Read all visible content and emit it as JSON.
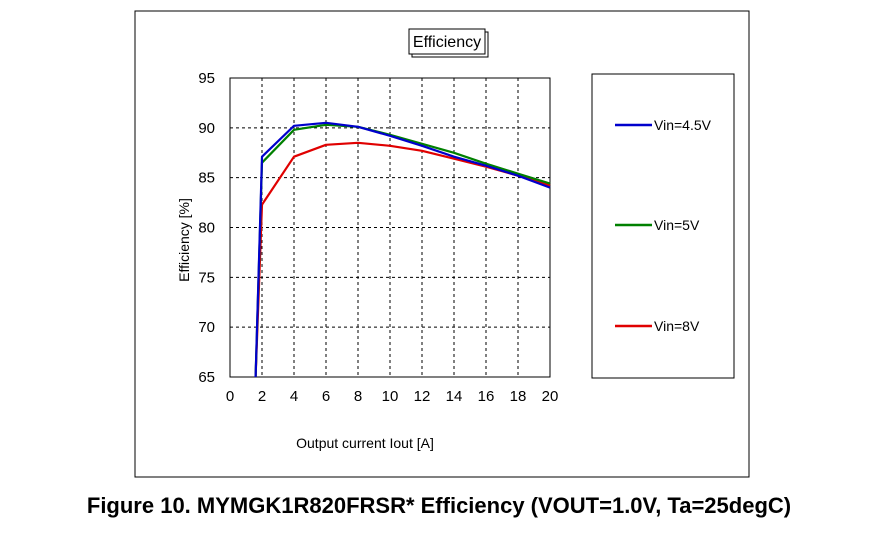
{
  "figure_caption": "Figure 10. MYMGK1R820FRSR* Efficiency (VOUT=1.0V, Ta=25degC)",
  "chart_data": {
    "type": "line",
    "title": "Efficiency",
    "xlabel": "Output current Iout [A]",
    "ylabel": "Efficiency [%]",
    "xlim": [
      0,
      20
    ],
    "ylim": [
      65,
      95
    ],
    "x_ticks": [
      0,
      2,
      4,
      6,
      8,
      10,
      12,
      14,
      16,
      18,
      20
    ],
    "y_ticks": [
      65,
      70,
      75,
      80,
      85,
      90,
      95
    ],
    "grid": true,
    "legend_position": "right",
    "series": [
      {
        "name": "Vin=4.5V",
        "color": "#0000cc",
        "x": [
          1.6,
          2,
          4,
          6,
          8,
          10,
          12,
          14,
          16,
          18,
          20
        ],
        "y": [
          65,
          87.1,
          90.2,
          90.5,
          90.1,
          89.2,
          88.2,
          87.1,
          86.2,
          85.2,
          84.0
        ]
      },
      {
        "name": "Vin=5V",
        "color": "#008000",
        "x": [
          1.6,
          2,
          4,
          6,
          8,
          10,
          12,
          14,
          16,
          18,
          20
        ],
        "y": [
          65,
          86.5,
          89.8,
          90.3,
          90.1,
          89.3,
          88.4,
          87.5,
          86.4,
          85.4,
          84.4
        ]
      },
      {
        "name": "Vin=8V",
        "color": "#e00000",
        "x": [
          1.6,
          2,
          4,
          6,
          8,
          10,
          12,
          14,
          16,
          18,
          20
        ],
        "y": [
          65,
          82.3,
          87.1,
          88.3,
          88.5,
          88.2,
          87.7,
          86.9,
          86.1,
          85.2,
          84.2
        ]
      }
    ]
  }
}
